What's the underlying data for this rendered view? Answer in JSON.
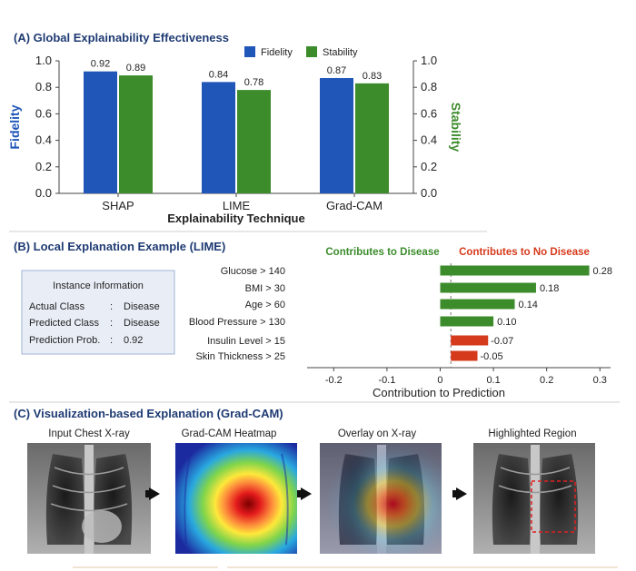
{
  "panel_a": {
    "heading": "(A) Global Explainability Effectiveness"
  },
  "panel_b": {
    "heading": "(B) Local Explanation Example (LIME)",
    "instance": {
      "title": "Instance Information",
      "rows": [
        {
          "key": "Actual Class",
          "sep": ":",
          "value": "Disease"
        },
        {
          "key": "Predicted Class",
          "sep": ":",
          "value": "Disease"
        },
        {
          "key": "Prediction Prob.",
          "sep": ":",
          "value": "0.92"
        }
      ]
    },
    "legend_pos": "Contributes to Disease",
    "legend_neg": "Contributes to No Disease"
  },
  "panel_c": {
    "heading": "(C) Visualization-based Explanation (Grad-CAM)",
    "captions": [
      "Input Chest X-ray",
      "Grad-CAM Heatmap",
      "Overlay on X-ray",
      "Highlighted Region"
    ]
  },
  "colors": {
    "heading": "#1f3b73",
    "fidelity": "#1f56b8",
    "stability": "#3c8c2c",
    "positive": "#3c8c2c",
    "negative": "#d63a1c",
    "info_box_bg": "#e9eef6",
    "info_box_border": "#9fb4d6"
  },
  "icons": [
    "arrow-right-icon",
    "arrow-right-icon",
    "arrow-right-icon"
  ],
  "chart_data": [
    {
      "type": "bar",
      "categories": [
        "SHAP",
        "LIME",
        "Grad-CAM"
      ],
      "series": [
        {
          "name": "Fidelity",
          "values": [
            0.92,
            0.84,
            0.87
          ],
          "labels": [
            "0.92",
            "0.84",
            "0.87"
          ]
        },
        {
          "name": "Stability",
          "values": [
            0.89,
            0.78,
            0.83
          ],
          "labels": [
            "0.89",
            "0.78",
            "0.83"
          ]
        }
      ],
      "xlabel": "Explainability Technique",
      "ylabel": "Fidelity",
      "y2label": "Stability",
      "ylim": [
        0,
        1.0
      ],
      "yticks": [
        "0.0",
        "0.2",
        "0.4",
        "0.6",
        "0.8",
        "1.0"
      ],
      "y2ticks": [
        "0.0",
        "0.2",
        "0.4",
        "0.6",
        "0.8",
        "1.0"
      ],
      "legend_position": "top-center",
      "grid": false
    },
    {
      "type": "bar",
      "orientation": "horizontal",
      "categories": [
        "Glucose > 140",
        "BMI > 30",
        "Age > 60",
        "Blood Pressure > 130",
        "Insulin Level > 15",
        "Skin Thickness > 25"
      ],
      "values": [
        0.28,
        0.18,
        0.14,
        0.1,
        -0.07,
        -0.05
      ],
      "labels": [
        "0.28",
        "0.18",
        "0.14",
        "0.10",
        "-0.07",
        "-0.05"
      ],
      "xlabel": "Contribution to Prediction",
      "xlim": [
        -0.25,
        0.32
      ],
      "xticks": [
        "-0.2",
        "-0.1",
        "0",
        "0.1",
        "0.2",
        "0.3"
      ],
      "reference_line_x": 0.02,
      "grid": false
    }
  ]
}
